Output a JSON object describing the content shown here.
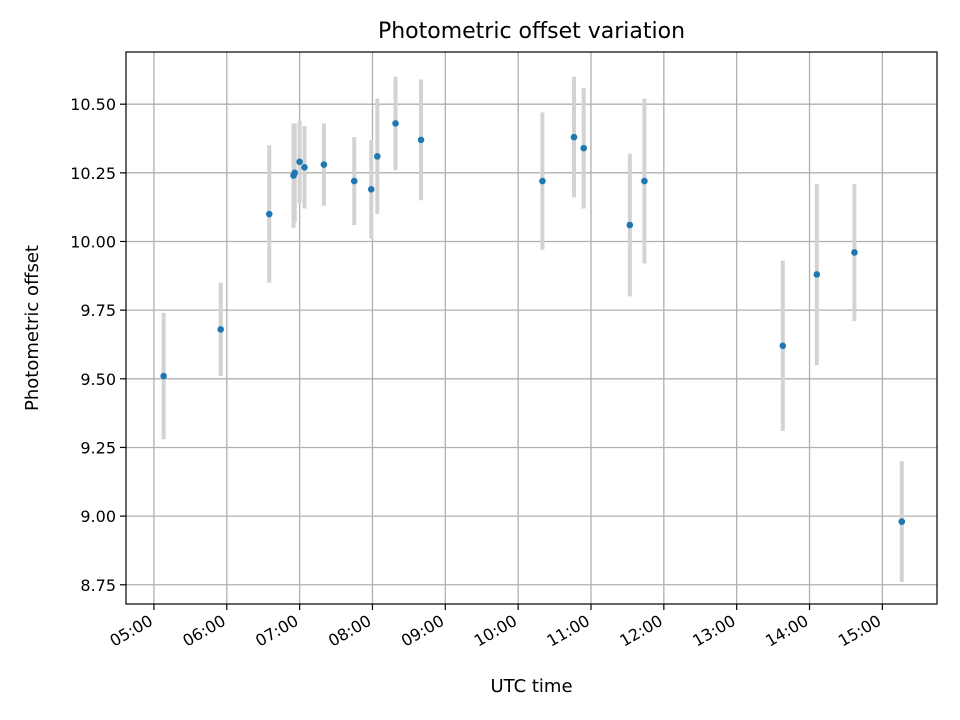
{
  "chart_data": {
    "type": "scatter",
    "title": "Photometric offset variation",
    "xlabel": "UTC time",
    "ylabel": "Photometric offset",
    "xlim": [
      "04:37",
      "15:45"
    ],
    "ylim": [
      8.68,
      10.69
    ],
    "grid": true,
    "x_ticks": [
      "05:00",
      "06:00",
      "07:00",
      "08:00",
      "09:00",
      "10:00",
      "11:00",
      "12:00",
      "13:00",
      "14:00",
      "15:00"
    ],
    "y_ticks": [
      "8.75",
      "9.00",
      "9.25",
      "9.50",
      "9.75",
      "10.00",
      "10.25",
      "10.50"
    ],
    "colors": {
      "points": "#1f77b4",
      "error_bars": "#d3d3d3"
    },
    "points": [
      {
        "x": "05:08",
        "y": 9.51,
        "err": 0.23
      },
      {
        "x": "05:55",
        "y": 9.68,
        "err": 0.17
      },
      {
        "x": "06:35",
        "y": 10.1,
        "err": 0.25
      },
      {
        "x": "06:55",
        "y": 10.24,
        "err": 0.19
      },
      {
        "x": "06:56",
        "y": 10.25,
        "err": 0.18
      },
      {
        "x": "07:00",
        "y": 10.29,
        "err": 0.15
      },
      {
        "x": "07:04",
        "y": 10.27,
        "err": 0.15
      },
      {
        "x": "07:20",
        "y": 10.28,
        "err": 0.15
      },
      {
        "x": "07:45",
        "y": 10.22,
        "err": 0.16
      },
      {
        "x": "07:59",
        "y": 10.19,
        "err": 0.18
      },
      {
        "x": "08:04",
        "y": 10.31,
        "err": 0.21
      },
      {
        "x": "08:19",
        "y": 10.43,
        "err": 0.17
      },
      {
        "x": "08:40",
        "y": 10.37,
        "err": 0.22
      },
      {
        "x": "10:20",
        "y": 10.22,
        "err": 0.25
      },
      {
        "x": "10:46",
        "y": 10.38,
        "err": 0.22
      },
      {
        "x": "10:54",
        "y": 10.34,
        "err": 0.22
      },
      {
        "x": "11:32",
        "y": 10.06,
        "err": 0.26
      },
      {
        "x": "11:44",
        "y": 10.22,
        "err": 0.3
      },
      {
        "x": "13:38",
        "y": 9.62,
        "err": 0.31
      },
      {
        "x": "14:06",
        "y": 9.88,
        "err": 0.33
      },
      {
        "x": "14:37",
        "y": 9.96,
        "err": 0.25
      },
      {
        "x": "15:16",
        "y": 8.98,
        "err": 0.22
      }
    ]
  }
}
